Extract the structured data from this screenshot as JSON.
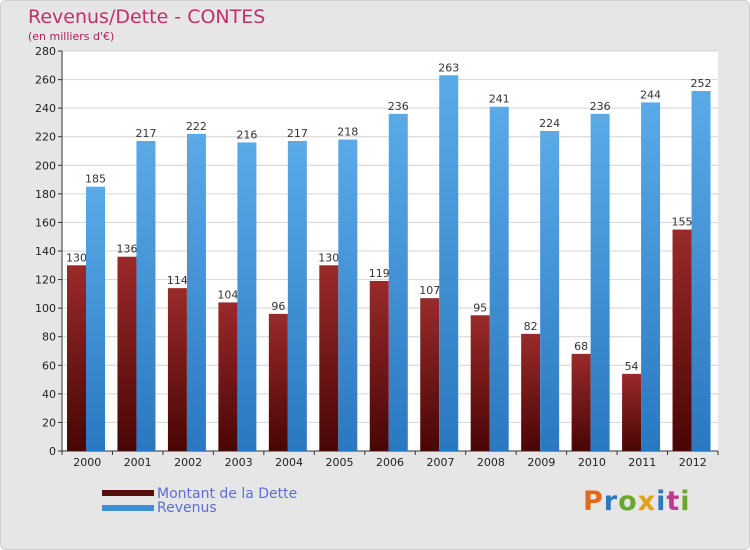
{
  "header": {
    "title": "Revenus/Dette - CONTES",
    "subtitle": "(en milliers d'€)"
  },
  "chart_data": {
    "type": "bar",
    "title": "Revenus/Dette - CONTES",
    "subtitle": "(en milliers d'€)",
    "categories": [
      "2000",
      "2001",
      "2002",
      "2003",
      "2004",
      "2005",
      "2006",
      "2007",
      "2008",
      "2009",
      "2010",
      "2011",
      "2012"
    ],
    "series": [
      {
        "name": "Montant de la Dette",
        "color": "#8b1a1a",
        "values": [
          130,
          136,
          114,
          104,
          96,
          130,
          119,
          107,
          95,
          82,
          68,
          54,
          155
        ]
      },
      {
        "name": "Revenus",
        "color": "#3d8fd8",
        "values": [
          185,
          217,
          222,
          216,
          217,
          218,
          236,
          263,
          241,
          224,
          236,
          244,
          252
        ]
      }
    ],
    "ylim": [
      0,
      280
    ],
    "yticks": [
      0,
      20,
      40,
      60,
      80,
      100,
      120,
      140,
      160,
      180,
      200,
      220,
      240,
      260,
      280
    ],
    "grid": true,
    "legend_position": "bottom-left"
  },
  "legend": {
    "debt_label": "Montant de la Dette",
    "revenue_label": "Revenus"
  },
  "logo": {
    "text": [
      "P",
      "r",
      "o",
      "x",
      "i",
      "t",
      "i"
    ],
    "colors": [
      "#e06a1a",
      "#2a7ac0",
      "#6aa82a",
      "#e0a21a",
      "#2a7ac0",
      "#c03a8a",
      "#6aa82a"
    ]
  }
}
